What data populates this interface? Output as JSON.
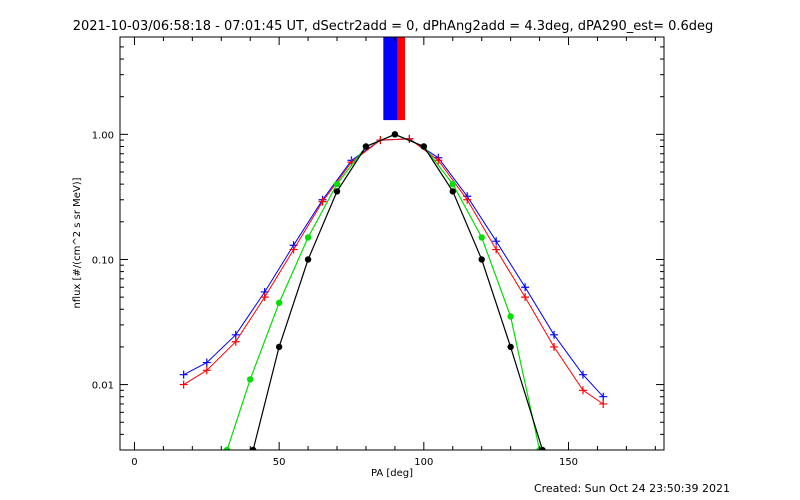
{
  "chart_data": {
    "type": "line",
    "title": "2021-10-03/06:58:18 - 07:01:45 UT, dSectr2add = 0, dPhAng2add = 4.3deg, dPA290_est=  0.6deg",
    "xlabel": "PA [deg]",
    "ylabel": "nflux [#/(cm^2 s sr MeV)]",
    "xlim": [
      -5,
      183
    ],
    "ylim": [
      0.003,
      6
    ],
    "yscale": "log",
    "x_ticks": [
      0,
      50,
      100,
      150
    ],
    "x_tick_labels": [
      "0",
      "50",
      "100",
      "150"
    ],
    "y_ticks": [
      0.01,
      0.1,
      1.0
    ],
    "y_tick_labels": [
      "0.01",
      "0.10",
      "1.00"
    ],
    "grid": false,
    "colors": {
      "blue_series": "#0000ff",
      "red_series": "#ff0000",
      "green_fit": "#00e000",
      "black_fit": "#000000"
    },
    "series": [
      {
        "color": "blue",
        "x": [
          17,
          25,
          35,
          45,
          55,
          65,
          75,
          85,
          95,
          105,
          115,
          125,
          135,
          145,
          155,
          162
        ],
        "y": [
          0.012,
          0.015,
          0.025,
          0.055,
          0.13,
          0.3,
          0.62,
          0.9,
          0.92,
          0.65,
          0.32,
          0.14,
          0.06,
          0.025,
          0.012,
          0.008
        ]
      },
      {
        "color": "red",
        "x": [
          17,
          25,
          35,
          45,
          55,
          65,
          75,
          85,
          95,
          105,
          115,
          125,
          135,
          145,
          155,
          162
        ],
        "y": [
          0.01,
          0.013,
          0.022,
          0.05,
          0.12,
          0.29,
          0.6,
          0.9,
          0.92,
          0.62,
          0.3,
          0.12,
          0.05,
          0.02,
          0.009,
          0.007
        ]
      },
      {
        "color": "green",
        "name": "",
        "x": [
          32,
          40,
          50,
          60,
          70,
          80,
          90,
          100,
          110,
          120,
          130,
          140
        ],
        "y": [
          0.003,
          0.011,
          0.045,
          0.15,
          0.4,
          0.8,
          1.0,
          0.8,
          0.4,
          0.15,
          0.035,
          0.003
        ]
      },
      {
        "color": "black",
        "name": "",
        "x": [
          41,
          50,
          60,
          70,
          80,
          90,
          100,
          110,
          120,
          130,
          141
        ],
        "y": [
          0.003,
          0.02,
          0.1,
          0.35,
          0.8,
          1.0,
          0.8,
          0.35,
          0.1,
          0.02,
          0.003
        ]
      }
    ],
    "spikes": [
      {
        "color": "blue",
        "x_from": 86,
        "x_to": 91,
        "y_from": 1.3,
        "y_to": 6
      },
      {
        "color": "red",
        "x_from": 91,
        "x_to": 93.5,
        "y_from": 1.3,
        "y_to": 6
      }
    ]
  },
  "footer": {
    "created": "Created: Sun Oct 24 23:50:39 2021"
  }
}
